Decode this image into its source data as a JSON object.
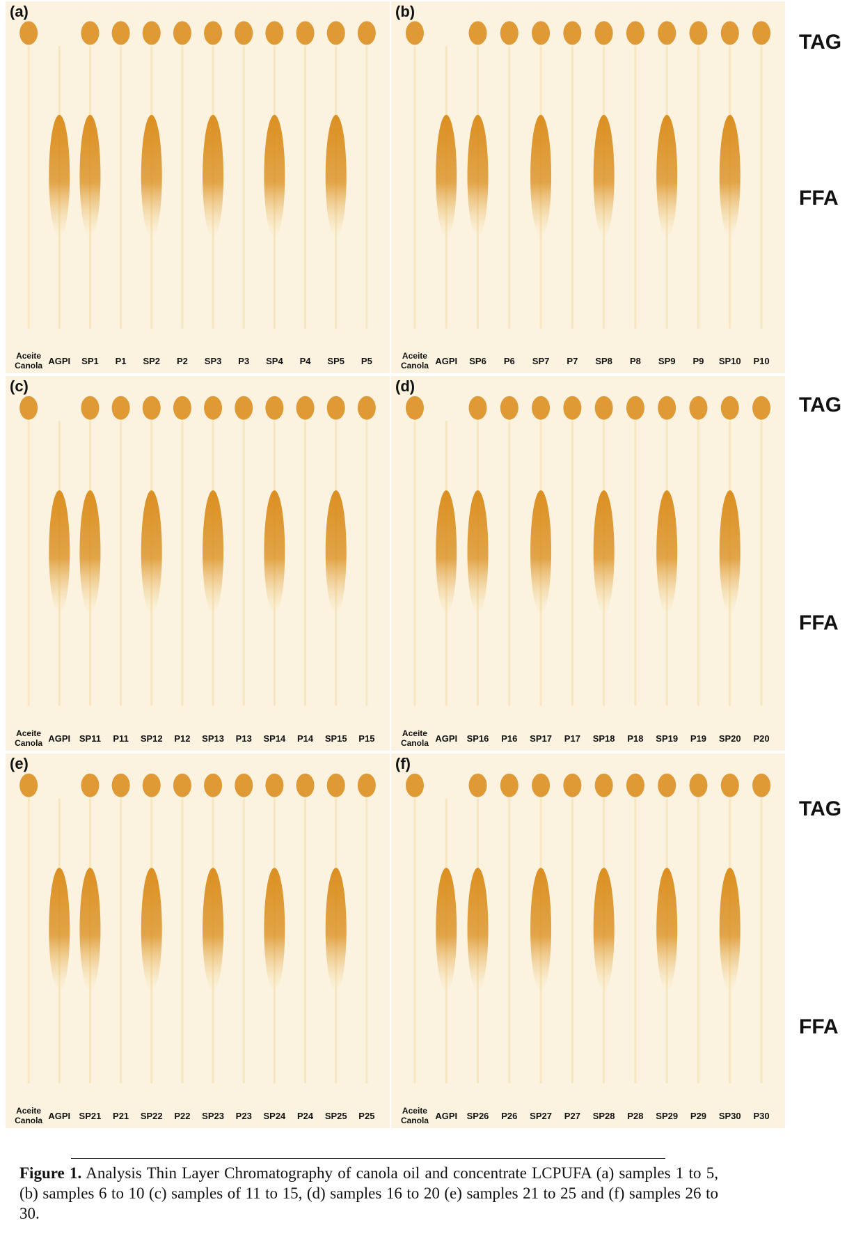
{
  "figure": {
    "side_labels": {
      "tag": "TAG",
      "ffa": "FFA"
    },
    "panels": [
      {
        "letter": "(a)",
        "lanes": [
          "Aceite Canola",
          "AGPI",
          "SP1",
          "P1",
          "SP2",
          "P2",
          "SP3",
          "P3",
          "SP4",
          "P4",
          "SP5",
          "P5"
        ],
        "tag_spots": [
          1,
          0,
          1,
          1,
          1,
          1,
          1,
          1,
          1,
          1,
          1,
          1
        ],
        "ffa_spots": [
          0,
          1,
          1,
          0,
          1,
          0,
          1,
          0,
          1,
          0,
          1,
          0
        ]
      },
      {
        "letter": "(b)",
        "lanes": [
          "Aceite Canola",
          "AGPI",
          "SP6",
          "P6",
          "SP7",
          "P7",
          "SP8",
          "P8",
          "SP9",
          "P9",
          "SP10",
          "P10"
        ],
        "tag_spots": [
          1,
          0,
          1,
          1,
          1,
          1,
          1,
          1,
          1,
          1,
          1,
          1
        ],
        "ffa_spots": [
          0,
          1,
          1,
          0,
          1,
          0,
          1,
          0,
          1,
          0,
          1,
          0
        ]
      },
      {
        "letter": "(c)",
        "lanes": [
          "Aceite Canola",
          "AGPI",
          "SP11",
          "P11",
          "SP12",
          "P12",
          "SP13",
          "P13",
          "SP14",
          "P14",
          "SP15",
          "P15"
        ],
        "tag_spots": [
          1,
          0,
          1,
          1,
          1,
          1,
          1,
          1,
          1,
          1,
          1,
          1
        ],
        "ffa_spots": [
          0,
          1,
          1,
          0,
          1,
          0,
          1,
          0,
          1,
          0,
          1,
          0
        ]
      },
      {
        "letter": "(d)",
        "lanes": [
          "Aceite Canola",
          "AGPI",
          "SP16",
          "P16",
          "SP17",
          "P17",
          "SP18",
          "P18",
          "SP19",
          "P19",
          "SP20",
          "P20"
        ],
        "tag_spots": [
          1,
          0,
          1,
          1,
          1,
          1,
          1,
          1,
          1,
          1,
          1,
          1
        ],
        "ffa_spots": [
          0,
          1,
          1,
          0,
          1,
          0,
          1,
          0,
          1,
          0,
          1,
          0
        ]
      },
      {
        "letter": "(e)",
        "lanes": [
          "Aceite Canola",
          "AGPI",
          "SP21",
          "P21",
          "SP22",
          "P22",
          "SP23",
          "P23",
          "SP24",
          "P24",
          "SP25",
          "P25"
        ],
        "tag_spots": [
          1,
          0,
          1,
          1,
          1,
          1,
          1,
          1,
          1,
          1,
          1,
          1
        ],
        "ffa_spots": [
          0,
          1,
          1,
          0,
          1,
          0,
          1,
          0,
          1,
          0,
          1,
          0
        ]
      },
      {
        "letter": "(f)",
        "lanes": [
          "Aceite Canola",
          "AGPI",
          "SP26",
          "P26",
          "SP27",
          "P27",
          "SP28",
          "P28",
          "SP29",
          "P29",
          "SP30",
          "P30"
        ],
        "tag_spots": [
          1,
          0,
          1,
          1,
          1,
          1,
          1,
          1,
          1,
          1,
          1,
          1
        ],
        "ffa_spots": [
          0,
          1,
          1,
          0,
          1,
          0,
          1,
          0,
          1,
          0,
          1,
          0
        ]
      }
    ]
  },
  "caption": {
    "label": "Figure 1.",
    "text": " Analysis Thin Layer Chromatography of canola oil and concentrate LCPUFA (a) samples 1 to 5, (b) samples 6 to 10 (c) samples of 11 to 15, (d) samples 16 to 20 (e) samples 21 to 25 and (f) samples 26 to 30."
  },
  "colors": {
    "plate_background": "#fbf3df",
    "spot_dark": "#d98a17",
    "spot_light": "#f2cf86"
  }
}
